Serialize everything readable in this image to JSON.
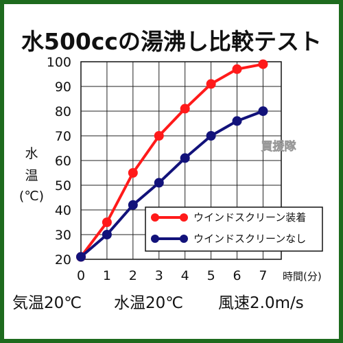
{
  "chart_data": {
    "type": "line",
    "title": "水500ccの湯沸し比較テスト",
    "xlabel": "時間(分)",
    "ylabel_chars": [
      "水",
      "温",
      "(℃)"
    ],
    "x": [
      0,
      1,
      2,
      3,
      4,
      5,
      6,
      7
    ],
    "x_ticks": [
      "0",
      "1",
      "2",
      "3",
      "4",
      "5",
      "6",
      "7"
    ],
    "y_ticks": [
      "20",
      "30",
      "40",
      "50",
      "60",
      "70",
      "80",
      "90",
      "100"
    ],
    "xlim": [
      0,
      7.7
    ],
    "ylim": [
      20,
      100
    ],
    "grid": true,
    "legend_position": "bottom-right",
    "series": [
      {
        "name": "ウインドスクリーン装着",
        "color": "#ff1a1a",
        "values": [
          21,
          35,
          55,
          70,
          81,
          91,
          97,
          99
        ]
      },
      {
        "name": "ウインドスクリーンなし",
        "color": "#12127a",
        "values": [
          21,
          30,
          42,
          51,
          61,
          70,
          76,
          80
        ]
      }
    ],
    "conditions": [
      "気温20℃",
      "水温20℃",
      "風速2.0m/s"
    ],
    "watermark": "買援隊"
  }
}
